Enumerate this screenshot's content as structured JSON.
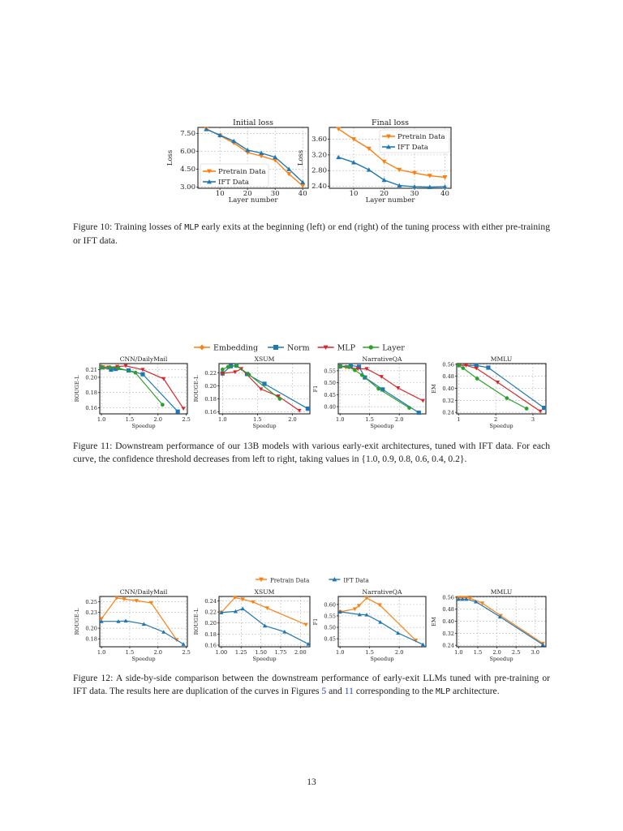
{
  "page_number": "13",
  "colors": {
    "pretrain": "#ff7f0e",
    "ift": "#1f77b4",
    "embedding": "#ff7f0e",
    "norm": "#1f77b4",
    "mlp": "#d62728",
    "layer": "#2ca02c"
  },
  "figure10": {
    "caption_prefix": "Figure 10: Training losses of ",
    "caption_code": "MLP",
    "caption_suffix": " early exits at the beginning (left) or end (right) of the tuning process with either pre-training or IFT data.",
    "legend": [
      "Pretrain Data",
      "IFT Data"
    ]
  },
  "figure11": {
    "caption": "Figure 11: Downstream performance of our 13B models with various early-exit architectures, tuned with IFT data. For each curve, the confidence threshold decreases from left to right, taking values in {1.0, 0.9, 0.8, 0.6, 0.4, 0.2}.",
    "legend": [
      "Embedding",
      "Norm",
      "MLP",
      "Layer"
    ]
  },
  "figure12": {
    "caption_part1": "Figure 12: A side-by-side comparison between the downstream performance of early-exit LLMs tuned with pre-training or IFT data. The results here are duplication of the curves in Figures ",
    "ref1": "5",
    "caption_part2": " and ",
    "ref2": "11",
    "caption_part3": " corresponding to the ",
    "caption_code": "MLP",
    "caption_part4": " architecture.",
    "legend": [
      "Pretrain Data",
      "IFT Data"
    ]
  },
  "chart_data": [
    {
      "figure": "10",
      "type": "line",
      "title": "Initial loss",
      "xlabel": "Layer number",
      "ylabel": "Loss",
      "x": [
        5,
        10,
        15,
        20,
        25,
        30,
        35,
        40
      ],
      "xticks": [
        10,
        20,
        30,
        40
      ],
      "yticks": [
        "3.00",
        "4.50",
        "6.00",
        "7.50"
      ],
      "ylim": [
        2.9,
        8.0
      ],
      "series": [
        {
          "name": "Pretrain Data",
          "values": [
            7.9,
            7.3,
            6.7,
            5.9,
            5.6,
            5.25,
            4.1,
            3.1
          ]
        },
        {
          "name": "IFT Data",
          "values": [
            7.85,
            7.35,
            6.85,
            6.1,
            5.85,
            5.5,
            4.5,
            3.4
          ]
        }
      ]
    },
    {
      "figure": "10",
      "type": "line",
      "title": "Final loss",
      "xlabel": "Layer number",
      "ylabel": "Loss",
      "x": [
        5,
        10,
        15,
        20,
        25,
        30,
        35,
        40
      ],
      "xticks": [
        10,
        20,
        30,
        40
      ],
      "yticks": [
        "2.40",
        "2.80",
        "3.20",
        "3.60"
      ],
      "ylim": [
        2.35,
        3.9
      ],
      "series": [
        {
          "name": "Pretrain Data",
          "values": [
            3.86,
            3.6,
            3.36,
            3.03,
            2.82,
            2.74,
            2.67,
            2.63
          ]
        },
        {
          "name": "IFT Data",
          "values": [
            3.14,
            3.01,
            2.82,
            2.56,
            2.42,
            2.39,
            2.38,
            2.39
          ]
        }
      ]
    },
    {
      "figure": "11",
      "type": "line",
      "title": "CNN/DailyMail",
      "xlabel": "Speedup",
      "ylabel": "ROUGE-L",
      "xticks": [
        "1.0",
        "1.5",
        "2.0",
        "2.5"
      ],
      "yticks": [
        "0.16",
        "0.18",
        "0.20",
        "0.21"
      ],
      "xlim": [
        0.97,
        2.52
      ],
      "ylim": [
        0.152,
        0.218
      ],
      "series": [
        {
          "name": "Embedding",
          "points": [
            [
              1.0,
              0.214
            ],
            [
              1.05,
              0.213
            ],
            [
              1.15,
              0.213
            ],
            [
              1.3,
              0.212
            ]
          ]
        },
        {
          "name": "Norm",
          "points": [
            [
              1.0,
              0.213
            ],
            [
              1.17,
              0.21
            ],
            [
              1.25,
              0.211
            ],
            [
              1.48,
              0.209
            ],
            [
              1.73,
              0.204
            ],
            [
              2.35,
              0.155
            ]
          ]
        },
        {
          "name": "MLP",
          "points": [
            [
              1.0,
              0.213
            ],
            [
              1.12,
              0.213
            ],
            [
              1.28,
              0.214
            ],
            [
              1.43,
              0.215
            ],
            [
              1.73,
              0.21
            ],
            [
              2.1,
              0.198
            ],
            [
              2.45,
              0.159
            ]
          ]
        },
        {
          "name": "Layer",
          "points": [
            [
              1.0,
              0.213
            ],
            [
              1.15,
              0.213
            ],
            [
              1.3,
              0.212
            ],
            [
              1.6,
              0.206
            ],
            [
              2.08,
              0.164
            ]
          ]
        }
      ]
    },
    {
      "figure": "11",
      "type": "line",
      "title": "XSUM",
      "xlabel": "Speedup",
      "ylabel": "ROUGE-L",
      "xticks": [
        "1.0",
        "1.5",
        "2.0"
      ],
      "yticks": [
        "0.16",
        "0.18",
        "0.20",
        "0.22"
      ],
      "xlim": [
        0.95,
        2.25
      ],
      "ylim": [
        0.157,
        0.234
      ],
      "series": [
        {
          "name": "Embedding",
          "points": [
            [
              1.0,
              0.218
            ],
            [
              1.1,
              0.229
            ],
            [
              1.2,
              0.231
            ]
          ]
        },
        {
          "name": "Norm",
          "points": [
            [
              1.0,
              0.219
            ],
            [
              1.12,
              0.23
            ],
            [
              1.2,
              0.231
            ],
            [
              1.35,
              0.218
            ],
            [
              1.6,
              0.203
            ],
            [
              2.22,
              0.165
            ]
          ]
        },
        {
          "name": "MLP",
          "points": [
            [
              1.0,
              0.219
            ],
            [
              1.18,
              0.221
            ],
            [
              1.27,
              0.226
            ],
            [
              1.55,
              0.195
            ],
            [
              1.8,
              0.184
            ],
            [
              2.1,
              0.162
            ]
          ]
        },
        {
          "name": "Layer",
          "points": [
            [
              1.0,
              0.225
            ],
            [
              1.08,
              0.229
            ],
            [
              1.2,
              0.231
            ],
            [
              1.38,
              0.217
            ],
            [
              1.82,
              0.18
            ]
          ]
        }
      ]
    },
    {
      "figure": "11",
      "type": "line",
      "title": "NarrativeQA",
      "xlabel": "Speedup",
      "ylabel": "F1",
      "xticks": [
        "1.0",
        "1.5",
        "2.0"
      ],
      "yticks": [
        "0.40",
        "0.45",
        "0.50",
        "0.55"
      ],
      "xlim": [
        0.97,
        2.45
      ],
      "ylim": [
        0.37,
        0.58
      ],
      "series": [
        {
          "name": "Embedding",
          "points": [
            [
              1.0,
              0.568
            ],
            [
              1.1,
              0.566
            ]
          ]
        },
        {
          "name": "Norm",
          "points": [
            [
              1.0,
              0.568
            ],
            [
              1.18,
              0.572
            ],
            [
              1.32,
              0.567
            ],
            [
              1.42,
              0.522
            ],
            [
              1.72,
              0.472
            ],
            [
              2.33,
              0.375
            ]
          ]
        },
        {
          "name": "MLP",
          "points": [
            [
              1.0,
              0.568
            ],
            [
              1.3,
              0.558
            ],
            [
              1.45,
              0.558
            ],
            [
              1.7,
              0.525
            ],
            [
              1.98,
              0.478
            ],
            [
              2.4,
              0.425
            ]
          ]
        },
        {
          "name": "Layer",
          "points": [
            [
              1.0,
              0.568
            ],
            [
              1.15,
              0.565
            ],
            [
              1.25,
              0.552
            ],
            [
              1.37,
              0.532
            ],
            [
              1.65,
              0.475
            ],
            [
              2.17,
              0.395
            ]
          ]
        }
      ]
    },
    {
      "figure": "11",
      "type": "line",
      "title": "MMLU",
      "xlabel": "Speedup",
      "ylabel": "EM",
      "xticks": [
        "1",
        "2",
        "3"
      ],
      "yticks": [
        "0.24",
        "0.32",
        "0.40",
        "0.48",
        "0.56"
      ],
      "xlim": [
        0.95,
        3.35
      ],
      "ylim": [
        0.23,
        0.565
      ],
      "series": [
        {
          "name": "Embedding",
          "points": [
            [
              1.0,
              0.555
            ]
          ]
        },
        {
          "name": "Norm",
          "points": [
            [
              1.0,
              0.555
            ],
            [
              1.48,
              0.552
            ],
            [
              1.8,
              0.538
            ],
            [
              3.3,
              0.27
            ]
          ]
        },
        {
          "name": "MLP",
          "points": [
            [
              1.0,
              0.555
            ],
            [
              1.2,
              0.553
            ],
            [
              1.48,
              0.533
            ],
            [
              2.05,
              0.44
            ],
            [
              3.2,
              0.247
            ]
          ]
        },
        {
          "name": "Layer",
          "points": [
            [
              1.0,
              0.552
            ],
            [
              1.12,
              0.535
            ],
            [
              1.5,
              0.465
            ],
            [
              2.3,
              0.335
            ],
            [
              2.83,
              0.265
            ]
          ]
        }
      ]
    },
    {
      "figure": "12",
      "type": "line",
      "title": "CNN/DailyMail",
      "xlabel": "Speedup",
      "ylabel": "ROUGE-L",
      "xticks": [
        "1.0",
        "1.5",
        "2.0",
        "2.5"
      ],
      "yticks": [
        "0.18",
        "0.20",
        "0.23",
        "0.25"
      ],
      "xlim": [
        0.97,
        2.52
      ],
      "ylim": [
        0.165,
        0.26
      ],
      "series": [
        {
          "name": "Pretrain Data",
          "points": [
            [
              1.0,
              0.218
            ],
            [
              1.27,
              0.257
            ],
            [
              1.4,
              0.255
            ],
            [
              1.62,
              0.252
            ],
            [
              1.88,
              0.248
            ],
            [
              2.33,
              0.178
            ]
          ]
        },
        {
          "name": "IFT Data",
          "points": [
            [
              1.0,
              0.213
            ],
            [
              1.3,
              0.213
            ],
            [
              1.43,
              0.214
            ],
            [
              1.75,
              0.208
            ],
            [
              2.1,
              0.193
            ],
            [
              2.45,
              0.17
            ]
          ]
        }
      ]
    },
    {
      "figure": "12",
      "type": "line",
      "title": "XSUM",
      "xlabel": "Speedup",
      "ylabel": "ROUGE-L",
      "xticks": [
        "1.00",
        "1.25",
        "1.50",
        "1.75",
        "2.00"
      ],
      "yticks": [
        "0.16",
        "0.18",
        "0.20",
        "0.22",
        "0.24"
      ],
      "xlim": [
        0.97,
        2.12
      ],
      "ylim": [
        0.157,
        0.248
      ],
      "series": [
        {
          "name": "Pretrain Data",
          "points": [
            [
              1.0,
              0.219
            ],
            [
              1.17,
              0.246
            ],
            [
              1.27,
              0.243
            ],
            [
              1.4,
              0.238
            ],
            [
              1.58,
              0.227
            ],
            [
              2.07,
              0.197
            ]
          ]
        },
        {
          "name": "IFT Data",
          "points": [
            [
              1.0,
              0.219
            ],
            [
              1.18,
              0.221
            ],
            [
              1.27,
              0.226
            ],
            [
              1.55,
              0.195
            ],
            [
              1.8,
              0.184
            ],
            [
              2.1,
              0.162
            ]
          ]
        }
      ]
    },
    {
      "figure": "12",
      "type": "line",
      "title": "NarrativeQA",
      "xlabel": "Speedup",
      "ylabel": "F1",
      "xticks": [
        "1.0",
        "1.5",
        "2.0"
      ],
      "yticks": [
        "0.45",
        "0.50",
        "0.55",
        "0.60"
      ],
      "xlim": [
        0.97,
        2.45
      ],
      "ylim": [
        0.415,
        0.635
      ],
      "series": [
        {
          "name": "Pretrain Data",
          "points": [
            [
              1.0,
              0.568
            ],
            [
              1.25,
              0.58
            ],
            [
              1.32,
              0.595
            ],
            [
              1.45,
              0.628
            ],
            [
              1.67,
              0.598
            ],
            [
              2.28,
              0.443
            ]
          ]
        },
        {
          "name": "IFT Data",
          "points": [
            [
              1.0,
              0.568
            ],
            [
              1.33,
              0.556
            ],
            [
              1.45,
              0.555
            ],
            [
              1.68,
              0.523
            ],
            [
              1.98,
              0.475
            ],
            [
              2.4,
              0.425
            ]
          ]
        }
      ]
    },
    {
      "figure": "12",
      "type": "line",
      "title": "MMLU",
      "xlabel": "Speedup",
      "ylabel": "EM",
      "xticks": [
        "1.0",
        "1.5",
        "2.0",
        "2.5",
        "3.0"
      ],
      "yticks": [
        "0.24",
        "0.32",
        "0.40",
        "0.48",
        "0.56"
      ],
      "xlim": [
        0.95,
        3.28
      ],
      "ylim": [
        0.23,
        0.565
      ],
      "series": [
        {
          "name": "Pretrain Data",
          "points": [
            [
              1.0,
              0.557
            ],
            [
              1.1,
              0.557
            ],
            [
              1.2,
              0.556
            ],
            [
              1.3,
              0.553
            ],
            [
              1.62,
              0.52
            ],
            [
              2.1,
              0.437
            ],
            [
              3.2,
              0.252
            ]
          ]
        },
        {
          "name": "IFT Data",
          "points": [
            [
              1.0,
              0.547
            ],
            [
              1.1,
              0.547
            ],
            [
              1.2,
              0.547
            ],
            [
              1.45,
              0.53
            ],
            [
              2.08,
              0.43
            ],
            [
              3.2,
              0.244
            ]
          ]
        }
      ]
    }
  ]
}
